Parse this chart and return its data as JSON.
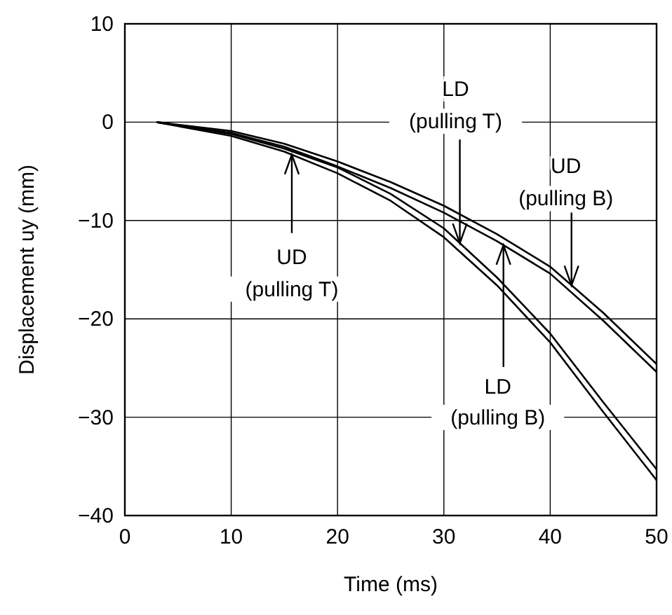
{
  "chart_data": {
    "type": "line",
    "xlabel": "Time (ms)",
    "ylabel": "Displacement uy (mm)",
    "xlim": [
      0,
      50
    ],
    "ylim": [
      -40,
      10
    ],
    "xticks": [
      0,
      10,
      20,
      30,
      40,
      50
    ],
    "yticks": [
      -40,
      -30,
      -20,
      -10,
      0,
      10
    ],
    "grid": true,
    "marker": "none",
    "line_style": "solid",
    "x": [
      3,
      10,
      15,
      20,
      25,
      30,
      35,
      40,
      45,
      50
    ],
    "series": [
      {
        "color": "#000000",
        "values": [
          0,
          -0.9,
          -2.2,
          -4.0,
          -6.1,
          -8.5,
          -11.4,
          -14.7,
          -19.4,
          -24.6
        ]
      },
      {
        "color": "#000000",
        "values": [
          0,
          -1.1,
          -2.5,
          -4.5,
          -6.7,
          -9.2,
          -12.1,
          -15.4,
          -20.2,
          -25.4
        ]
      },
      {
        "color": "#000000",
        "values": [
          0,
          -1.2,
          -2.7,
          -4.6,
          -7.3,
          -10.8,
          -15.8,
          -21.5,
          -28.5,
          -35.3
        ]
      },
      {
        "color": "#000000",
        "values": [
          0,
          -1.4,
          -3.0,
          -5.2,
          -8.0,
          -11.7,
          -16.6,
          -22.4,
          -29.5,
          -36.4
        ]
      }
    ],
    "annotations": [
      {
        "text": "UD\n(pulling T)",
        "x": 15.7,
        "y": -3.3
      },
      {
        "text": "LD\n(pulling T)",
        "x": 31.5,
        "y": -12.3
      },
      {
        "text": "LD\n(pulling B)",
        "x": 35.6,
        "y": -12.5
      },
      {
        "text": "UD\n(pulling B)",
        "x": 42,
        "y": -16.6
      }
    ]
  }
}
